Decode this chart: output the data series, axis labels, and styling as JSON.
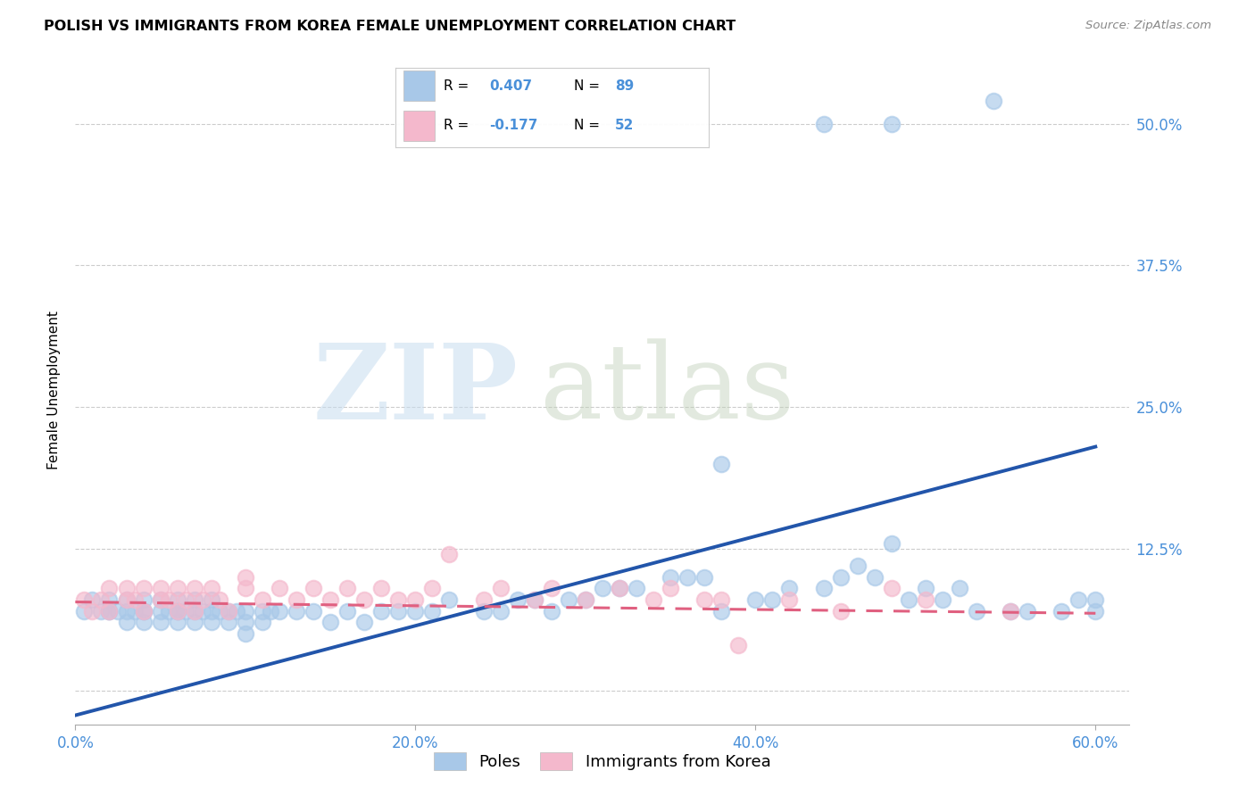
{
  "title": "POLISH VS IMMIGRANTS FROM KOREA FEMALE UNEMPLOYMENT CORRELATION CHART",
  "source": "Source: ZipAtlas.com",
  "ylabel": "Female Unemployment",
  "xtick_vals": [
    0.0,
    0.2,
    0.4,
    0.6
  ],
  "xtick_labels": [
    "0.0%",
    "20.0%",
    "40.0%",
    "60.0%"
  ],
  "ytick_vals": [
    0.0,
    0.125,
    0.25,
    0.375,
    0.5
  ],
  "ytick_labels": [
    "",
    "12.5%",
    "25.0%",
    "37.5%",
    "50.0%"
  ],
  "xlim": [
    0.0,
    0.62
  ],
  "ylim": [
    -0.03,
    0.56
  ],
  "legend_poles_label": "Poles",
  "legend_korea_label": "Immigrants from Korea",
  "legend_blue_R": "0.407",
  "legend_blue_N": "89",
  "legend_pink_R": "-0.177",
  "legend_pink_N": "52",
  "blue_scatter_color": "#a8c8e8",
  "pink_scatter_color": "#f4b8cc",
  "blue_line_color": "#2255aa",
  "pink_line_color": "#e06080",
  "blue_line_x0": 0.0,
  "blue_line_y0": -0.022,
  "blue_line_x1": 0.6,
  "blue_line_y1": 0.215,
  "pink_line_x0": 0.0,
  "pink_line_y0": 0.078,
  "pink_line_x1": 0.6,
  "pink_line_y1": 0.068,
  "watermark_zip_color": "#c8ddf0",
  "watermark_atlas_color": "#c0d0b8",
  "background_color": "#ffffff",
  "grid_color": "#cccccc",
  "tick_color": "#4a90d9",
  "title_fontsize": 11.5,
  "axis_fontsize": 12,
  "poles_x": [
    0.005,
    0.01,
    0.015,
    0.02,
    0.02,
    0.02,
    0.025,
    0.03,
    0.03,
    0.03,
    0.035,
    0.04,
    0.04,
    0.04,
    0.04,
    0.05,
    0.05,
    0.05,
    0.055,
    0.06,
    0.06,
    0.06,
    0.06,
    0.065,
    0.07,
    0.07,
    0.07,
    0.075,
    0.08,
    0.08,
    0.08,
    0.085,
    0.09,
    0.09,
    0.095,
    0.1,
    0.1,
    0.1,
    0.11,
    0.11,
    0.115,
    0.12,
    0.13,
    0.14,
    0.15,
    0.16,
    0.17,
    0.18,
    0.19,
    0.2,
    0.21,
    0.22,
    0.24,
    0.25,
    0.26,
    0.27,
    0.28,
    0.29,
    0.3,
    0.31,
    0.32,
    0.33,
    0.35,
    0.36,
    0.37,
    0.38,
    0.4,
    0.41,
    0.42,
    0.44,
    0.45,
    0.46,
    0.47,
    0.48,
    0.49,
    0.5,
    0.51,
    0.52,
    0.53,
    0.55,
    0.56,
    0.58,
    0.59,
    0.6,
    0.6,
    0.38,
    0.44,
    0.48,
    0.54
  ],
  "poles_y": [
    0.07,
    0.08,
    0.07,
    0.07,
    0.08,
    0.07,
    0.07,
    0.06,
    0.07,
    0.08,
    0.07,
    0.06,
    0.07,
    0.07,
    0.08,
    0.06,
    0.07,
    0.08,
    0.07,
    0.06,
    0.07,
    0.07,
    0.08,
    0.07,
    0.06,
    0.07,
    0.08,
    0.07,
    0.06,
    0.07,
    0.08,
    0.07,
    0.06,
    0.07,
    0.07,
    0.05,
    0.06,
    0.07,
    0.06,
    0.07,
    0.07,
    0.07,
    0.07,
    0.07,
    0.06,
    0.07,
    0.06,
    0.07,
    0.07,
    0.07,
    0.07,
    0.08,
    0.07,
    0.07,
    0.08,
    0.08,
    0.07,
    0.08,
    0.08,
    0.09,
    0.09,
    0.09,
    0.1,
    0.1,
    0.1,
    0.07,
    0.08,
    0.08,
    0.09,
    0.09,
    0.1,
    0.11,
    0.1,
    0.13,
    0.08,
    0.09,
    0.08,
    0.09,
    0.07,
    0.07,
    0.07,
    0.07,
    0.08,
    0.07,
    0.08,
    0.2,
    0.5,
    0.5,
    0.52
  ],
  "korea_x": [
    0.005,
    0.01,
    0.015,
    0.02,
    0.02,
    0.03,
    0.03,
    0.035,
    0.04,
    0.04,
    0.05,
    0.05,
    0.055,
    0.06,
    0.06,
    0.065,
    0.07,
    0.07,
    0.075,
    0.08,
    0.085,
    0.09,
    0.1,
    0.1,
    0.11,
    0.12,
    0.13,
    0.14,
    0.15,
    0.16,
    0.17,
    0.18,
    0.19,
    0.2,
    0.21,
    0.22,
    0.24,
    0.25,
    0.27,
    0.28,
    0.3,
    0.32,
    0.34,
    0.35,
    0.37,
    0.38,
    0.39,
    0.42,
    0.45,
    0.48,
    0.5,
    0.55
  ],
  "korea_y": [
    0.08,
    0.07,
    0.08,
    0.07,
    0.09,
    0.08,
    0.09,
    0.08,
    0.07,
    0.09,
    0.08,
    0.09,
    0.08,
    0.07,
    0.09,
    0.08,
    0.07,
    0.09,
    0.08,
    0.09,
    0.08,
    0.07,
    0.1,
    0.09,
    0.08,
    0.09,
    0.08,
    0.09,
    0.08,
    0.09,
    0.08,
    0.09,
    0.08,
    0.08,
    0.09,
    0.12,
    0.08,
    0.09,
    0.08,
    0.09,
    0.08,
    0.09,
    0.08,
    0.09,
    0.08,
    0.08,
    0.04,
    0.08,
    0.07,
    0.09,
    0.08,
    0.07
  ]
}
